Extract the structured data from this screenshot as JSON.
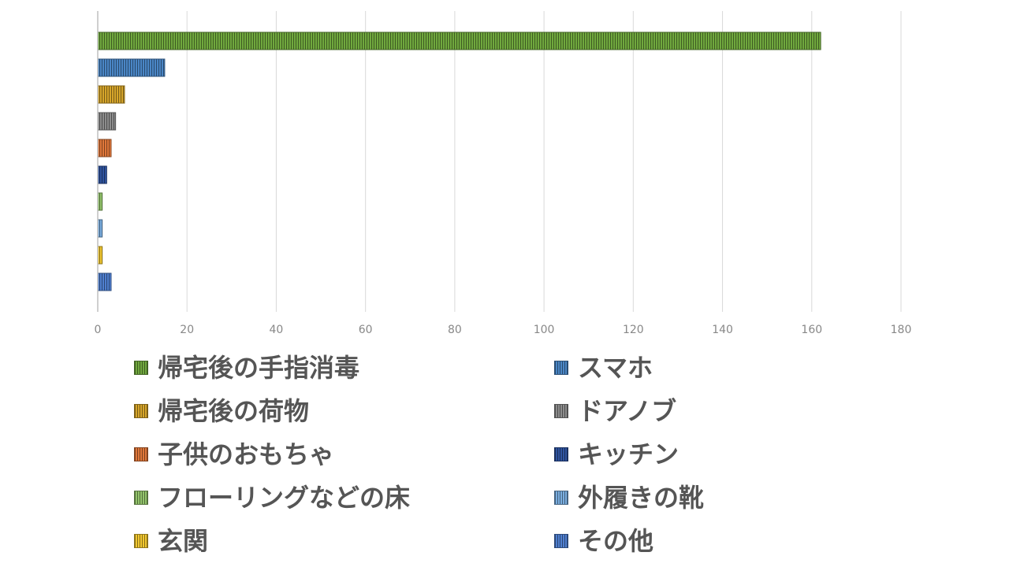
{
  "chart_data": {
    "type": "bar",
    "orientation": "horizontal",
    "categories": [
      "帰宅後の手指消毒",
      "スマホ",
      "帰宅後の荷物",
      "ドアノブ",
      "子供のおもちゃ",
      "キッチン",
      "フローリングなどの床",
      "外履きの靴",
      "玄関",
      "その他"
    ],
    "values": [
      162,
      15,
      6,
      4,
      3,
      2,
      1,
      1,
      1,
      3
    ],
    "colors": [
      "#70a83e",
      "#4a86c6",
      "#d6a52a",
      "#8c8c8c",
      "#e0773a",
      "#2f54a0",
      "#93c46b",
      "#7aaee0",
      "#f2c830",
      "#4f7fd0"
    ],
    "xlim": [
      0,
      180
    ],
    "xticks": [
      0,
      20,
      40,
      60,
      80,
      100,
      120,
      140,
      160,
      180
    ],
    "grid": true,
    "legend_position": "bottom"
  }
}
